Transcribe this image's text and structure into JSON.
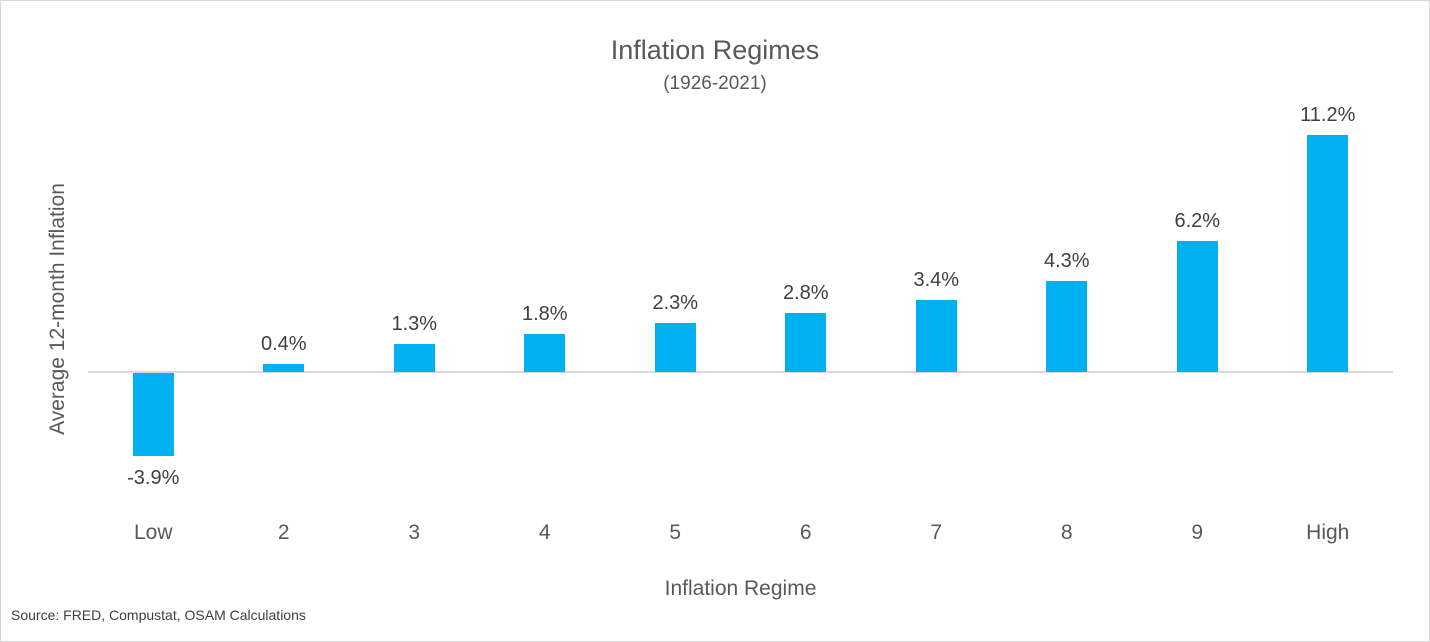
{
  "source": "Source: FRED, Compustat, OSAM Calculations",
  "colors": {
    "bar": "#00b0f0",
    "axis_line": "#d9d9d9",
    "title_text": "#595959",
    "data_label_text": "#404040",
    "border": "#d7d7d7"
  },
  "chart_data": {
    "type": "bar",
    "title": "Inflation Regimes",
    "subtitle": "(1926-2021)",
    "xlabel": "Inflation Regime",
    "ylabel": "Average 12-month Inflation",
    "categories": [
      "Low",
      "2",
      "3",
      "4",
      "5",
      "6",
      "7",
      "8",
      "9",
      "High"
    ],
    "values": [
      -3.9,
      0.4,
      1.3,
      1.8,
      2.3,
      2.8,
      3.4,
      4.3,
      6.2,
      11.2
    ],
    "value_labels": [
      "-3.9%",
      "0.4%",
      "1.3%",
      "1.8%",
      "2.3%",
      "2.8%",
      "3.4%",
      "4.3%",
      "6.2%",
      "11.2%"
    ],
    "ylim": [
      -5.5,
      12.5
    ],
    "grid": false,
    "legend": false,
    "y_tick_labels_shown": false,
    "data_labels_shown": true
  }
}
